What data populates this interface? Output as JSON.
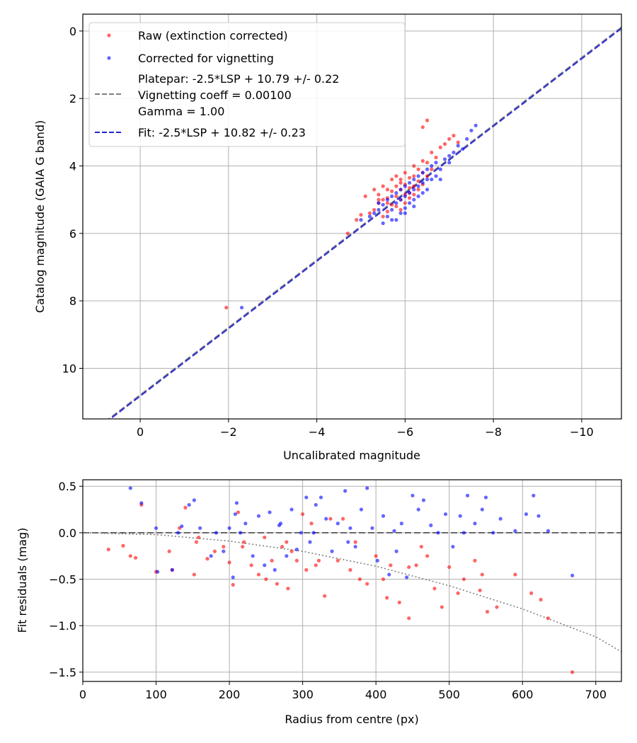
{
  "chart_data": [
    {
      "type": "scatter",
      "xlabel": "Uncalibrated magnitude",
      "ylabel": "Catalog magnitude (GAIA G band)",
      "xlim": [
        1.3,
        -10.9
      ],
      "ylim": [
        11.5,
        -0.5
      ],
      "x_inverted": true,
      "y_inverted": true,
      "xticks": [
        0,
        -2,
        -4,
        -6,
        -8,
        -10
      ],
      "xtick_labels": [
        "0",
        "−2",
        "−4",
        "−6",
        "−8",
        "−10"
      ],
      "yticks": [
        0,
        2,
        4,
        6,
        8,
        10
      ],
      "ytick_labels": [
        "0",
        "2",
        "4",
        "6",
        "8",
        "10"
      ],
      "grid": true,
      "legend_position": "top-left",
      "series": [
        {
          "name": "Raw (extinction corrected)",
          "kind": "scatter",
          "color": "#ff0000",
          "x": [
            -1.95,
            -4.7,
            -4.9,
            -5.0,
            -5.1,
            -5.2,
            -5.3,
            -5.3,
            -5.4,
            -5.4,
            -5.5,
            -5.5,
            -5.5,
            -5.6,
            -5.6,
            -5.6,
            -5.7,
            -5.7,
            -5.7,
            -5.8,
            -5.8,
            -5.8,
            -5.8,
            -5.9,
            -5.9,
            -5.9,
            -5.9,
            -6.0,
            -6.0,
            -6.0,
            -6.0,
            -6.1,
            -6.1,
            -6.1,
            -6.2,
            -6.2,
            -6.2,
            -6.2,
            -6.3,
            -6.3,
            -6.3,
            -6.4,
            -6.4,
            -6.4,
            -6.5,
            -6.5,
            -6.6,
            -6.6,
            -6.7,
            -6.8,
            -6.9,
            -7.0,
            -7.1,
            -7.2,
            -6.4,
            -6.1,
            -5.4,
            -5.6,
            -5.9,
            -6.5
          ],
          "y": [
            8.2,
            6.0,
            5.6,
            5.45,
            4.9,
            5.4,
            4.7,
            5.3,
            4.85,
            5.1,
            4.6,
            5.0,
            5.5,
            4.7,
            4.95,
            5.35,
            4.4,
            4.75,
            5.15,
            4.3,
            4.6,
            4.9,
            5.2,
            4.5,
            4.7,
            5.0,
            5.3,
            4.2,
            4.55,
            4.85,
            5.1,
            4.35,
            4.65,
            4.95,
            4.0,
            4.3,
            4.6,
            4.85,
            4.1,
            4.45,
            4.7,
            3.85,
            4.2,
            4.55,
            3.9,
            4.3,
            3.6,
            4.1,
            3.75,
            3.45,
            3.35,
            3.2,
            3.1,
            3.3,
            2.85,
            4.8,
            5.0,
            5.1,
            4.4,
            2.65
          ]
        },
        {
          "name": "Corrected for vignetting",
          "kind": "scatter",
          "color": "#0000ff",
          "x": [
            -2.3,
            -5.0,
            -5.2,
            -5.3,
            -5.4,
            -5.5,
            -5.6,
            -5.6,
            -5.7,
            -5.7,
            -5.8,
            -5.8,
            -5.8,
            -5.9,
            -5.9,
            -5.9,
            -6.0,
            -6.0,
            -6.0,
            -6.1,
            -6.1,
            -6.1,
            -6.2,
            -6.2,
            -6.2,
            -6.3,
            -6.3,
            -6.3,
            -6.4,
            -6.4,
            -6.4,
            -6.5,
            -6.5,
            -6.5,
            -6.6,
            -6.6,
            -6.7,
            -6.7,
            -6.8,
            -6.9,
            -7.0,
            -7.1,
            -7.2,
            -7.3,
            -7.4,
            -7.5,
            -7.6,
            -5.5,
            -5.7,
            -6.0,
            -6.2,
            -6.8,
            -7.0,
            -5.4
          ],
          "y": [
            8.2,
            5.6,
            5.5,
            5.4,
            5.3,
            5.15,
            5.0,
            5.5,
            4.9,
            5.3,
            4.8,
            5.1,
            5.6,
            4.7,
            5.0,
            5.4,
            4.6,
            4.9,
            5.25,
            4.5,
            4.8,
            5.1,
            4.4,
            4.7,
            5.0,
            4.3,
            4.6,
            4.9,
            4.2,
            4.5,
            4.8,
            4.1,
            4.4,
            4.7,
            4.0,
            4.4,
            3.9,
            4.3,
            4.1,
            3.8,
            3.9,
            3.6,
            3.4,
            3.5,
            3.2,
            2.95,
            2.8,
            5.7,
            5.6,
            5.4,
            5.2,
            4.4,
            3.7,
            5.1
          ]
        },
        {
          "name": "Platepar: -2.5*LSP + 10.79 +/- 0.22\nVignetting coeff = 0.00100\nGamma = 1.00",
          "label_lines": [
            "Platepar: -2.5*LSP + 10.79 +/- 0.22",
            "Vignetting coeff = 0.00100",
            "Gamma = 1.00"
          ],
          "kind": "line",
          "style": "dashed",
          "color": "#808080",
          "slope": 1.0,
          "intercept": 10.79
        },
        {
          "name": "Fit: -2.5*LSP + 10.82 +/- 0.23",
          "kind": "line",
          "style": "dashed",
          "color": "#2222cc",
          "slope": 1.0,
          "intercept": 10.82
        }
      ]
    },
    {
      "type": "scatter",
      "xlabel": "Radius from centre (px)",
      "ylabel": "Fit residuals (mag)",
      "xlim": [
        0,
        735
      ],
      "ylim": [
        -1.6,
        0.57
      ],
      "xticks": [
        0,
        100,
        200,
        300,
        400,
        500,
        600,
        700
      ],
      "xtick_labels": [
        "0",
        "100",
        "200",
        "300",
        "400",
        "500",
        "600",
        "700"
      ],
      "yticks": [
        0.5,
        0.0,
        -0.5,
        -1.0,
        -1.5
      ],
      "ytick_labels": [
        "0.5",
        "0.0",
        "−0.5",
        "−1.0",
        "−1.5"
      ],
      "grid": true,
      "series": [
        {
          "name": "Raw (extinction corrected)",
          "kind": "scatter",
          "color": "#ff0000",
          "x": [
            35,
            55,
            65,
            72,
            80,
            100,
            122,
            132,
            140,
            152,
            155,
            170,
            180,
            192,
            200,
            205,
            212,
            220,
            230,
            240,
            250,
            258,
            265,
            272,
            280,
            285,
            292,
            300,
            305,
            312,
            318,
            330,
            338,
            348,
            355,
            365,
            378,
            388,
            400,
            410,
            420,
            432,
            445,
            455,
            462,
            470,
            480,
            490,
            500,
            512,
            520,
            535,
            545,
            552,
            565,
            590,
            612,
            625,
            635,
            668,
            118,
            158,
            218,
            248,
            278,
            322,
            372,
            415,
            445,
            542
          ],
          "y": [
            -0.18,
            -0.14,
            -0.25,
            -0.27,
            0.3,
            -0.42,
            -0.4,
            0.05,
            0.27,
            -0.45,
            -0.1,
            -0.28,
            -0.2,
            -0.15,
            -0.32,
            -0.56,
            0.22,
            -0.1,
            -0.35,
            -0.45,
            -0.5,
            -0.3,
            -0.55,
            -0.15,
            -0.6,
            -0.2,
            -0.3,
            0.2,
            -0.4,
            0.1,
            -0.35,
            -0.68,
            0.15,
            -0.3,
            0.15,
            -0.4,
            -0.5,
            -0.55,
            -0.25,
            -0.5,
            -0.35,
            -0.75,
            -0.92,
            -0.35,
            -0.15,
            -0.25,
            -0.6,
            -0.8,
            -0.37,
            -0.65,
            -0.5,
            -0.3,
            -0.45,
            -0.85,
            -0.8,
            -0.45,
            -0.65,
            -0.72,
            -0.92,
            -1.5,
            -0.2,
            -0.05,
            -0.15,
            -0.05,
            -0.1,
            -0.3,
            -0.1,
            -0.7,
            -0.37,
            -0.62
          ]
        },
        {
          "name": "Corrected for vignetting",
          "kind": "scatter",
          "color": "#0000ff",
          "x": [
            65,
            80,
            100,
            102,
            122,
            130,
            135,
            145,
            152,
            160,
            175,
            182,
            192,
            200,
            205,
            210,
            215,
            222,
            232,
            240,
            248,
            255,
            262,
            270,
            278,
            285,
            292,
            298,
            305,
            310,
            318,
            325,
            332,
            340,
            348,
            358,
            365,
            372,
            380,
            388,
            395,
            402,
            410,
            418,
            425,
            435,
            442,
            450,
            458,
            465,
            475,
            485,
            495,
            505,
            515,
            525,
            535,
            545,
            550,
            560,
            570,
            590,
            605,
            615,
            622,
            635,
            668,
            208,
            268,
            315,
            362,
            428,
            520
          ],
          "y": [
            0.48,
            0.32,
            0.05,
            -0.42,
            -0.4,
            0.0,
            0.07,
            0.3,
            0.35,
            0.05,
            -0.25,
            0.0,
            -0.2,
            0.05,
            -0.48,
            0.32,
            0.0,
            0.1,
            -0.25,
            0.18,
            -0.35,
            0.22,
            -0.4,
            0.1,
            -0.25,
            0.25,
            -0.18,
            0.0,
            0.38,
            -0.1,
            0.3,
            0.38,
            0.15,
            -0.2,
            0.1,
            0.45,
            0.05,
            -0.15,
            0.25,
            0.48,
            0.05,
            -0.3,
            0.18,
            -0.45,
            0.02,
            0.1,
            -0.48,
            0.4,
            0.25,
            0.35,
            0.08,
            0.0,
            0.2,
            -0.15,
            0.18,
            0.4,
            0.1,
            0.25,
            0.38,
            0.0,
            0.15,
            0.02,
            0.2,
            0.4,
            0.18,
            0.02,
            -0.46,
            0.2,
            0.08,
            0.0,
            -0.1,
            -0.2,
            0.0
          ]
        },
        {
          "name": "zero-line",
          "kind": "line",
          "style": "dashed",
          "color": "#555555",
          "x": [
            0,
            735
          ],
          "y": [
            0,
            0
          ]
        },
        {
          "name": "vignetting-curve",
          "kind": "line",
          "style": "dotted",
          "color": "#808080",
          "x": [
            0,
            100,
            200,
            300,
            400,
            500,
            600,
            700,
            735
          ],
          "y": [
            0.0,
            -0.02,
            -0.09,
            -0.2,
            -0.36,
            -0.57,
            -0.82,
            -1.12,
            -1.28
          ]
        }
      ]
    }
  ]
}
